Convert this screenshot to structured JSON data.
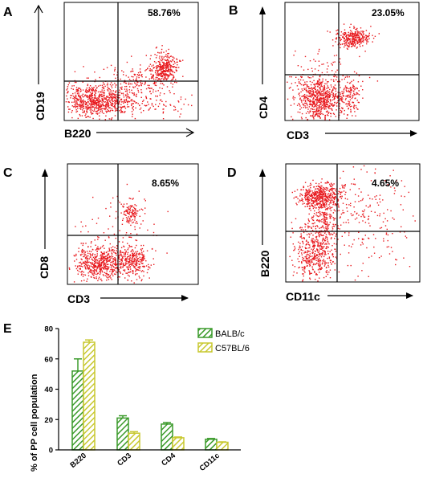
{
  "panels": [
    {
      "letter": "A",
      "percent": "58.76%",
      "xlabel": "B220",
      "ylabel": "CD19",
      "arrow_style": "open"
    },
    {
      "letter": "B",
      "percent": "23.05%",
      "xlabel": "CD3",
      "ylabel": "CD4",
      "arrow_style": "closed"
    },
    {
      "letter": "C",
      "percent": "8.65%",
      "xlabel": "CD3",
      "ylabel": "CD8",
      "arrow_style": "closed"
    },
    {
      "letter": "D",
      "percent": "4.65%",
      "xlabel": "CD11c",
      "ylabel": "B220",
      "arrow_style": "closed"
    }
  ],
  "colors": {
    "dots": "#e8191e",
    "balb": "#3a9a2a",
    "c57": "#c8c830",
    "axis": "#000000"
  },
  "chart_data": [
    {
      "type": "scatter",
      "panel": "A",
      "description_points": "flow cytometry dot plot",
      "quadrant_upper_right_percent": 58.76,
      "xlabel": "B220",
      "ylabel": "CD19"
    },
    {
      "type": "scatter",
      "panel": "B",
      "quadrant_upper_right_percent": 23.05,
      "xlabel": "CD3",
      "ylabel": "CD4"
    },
    {
      "type": "scatter",
      "panel": "C",
      "quadrant_upper_right_percent": 8.65,
      "xlabel": "CD3",
      "ylabel": "CD8"
    },
    {
      "type": "scatter",
      "panel": "D",
      "quadrant_upper_right_percent": 4.65,
      "xlabel": "CD11c",
      "ylabel": "B220"
    },
    {
      "type": "bar",
      "panel": "E",
      "letter": "E",
      "categories": [
        "B220",
        "CD3",
        "CD4",
        "CD11c"
      ],
      "series": [
        {
          "name": "BALB/c",
          "values": [
            52,
            21,
            17,
            7
          ],
          "errors": [
            8,
            1.5,
            1,
            0.5
          ]
        },
        {
          "name": "C57BL/6",
          "values": [
            71,
            11,
            8,
            5
          ],
          "errors": [
            1.5,
            1,
            0.5,
            0.3
          ]
        }
      ],
      "ylabel": "% of PP cell population",
      "ylim": [
        0,
        80
      ],
      "yticks": [
        "0",
        "20",
        "40",
        "60",
        "80"
      ],
      "legend_position": "top-right"
    }
  ]
}
